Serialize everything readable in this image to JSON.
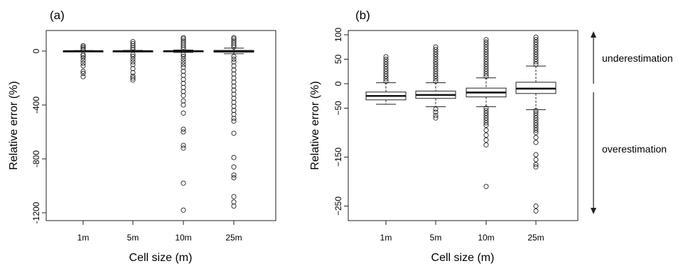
{
  "chart_data": [
    {
      "type": "box",
      "panel_label": "(a)",
      "xlabel": "Cell size (m)",
      "ylabel": "Relative error (%)",
      "categories": [
        "1m",
        "5m",
        "10m",
        "25m"
      ],
      "ylim": [
        -1250,
        150
      ],
      "yticks": [
        0,
        -400,
        -800,
        -1200
      ],
      "boxes": [
        {
          "category": "1m",
          "whisker_low": -5,
          "q1": -3,
          "median": -1,
          "q3": 1,
          "whisker_high": 4,
          "outliers": [
            -190,
            -165,
            -150,
            -110,
            -90,
            -70,
            -50,
            -35,
            -25,
            10,
            20,
            30,
            40
          ]
        },
        {
          "category": "5m",
          "whisker_low": -6,
          "q1": -3,
          "median": -1,
          "q3": 1,
          "whisker_high": 5,
          "outliers": [
            -215,
            -200,
            -185,
            -160,
            -130,
            -100,
            -80,
            -60,
            -40,
            -25,
            10,
            25,
            40,
            55,
            70
          ]
        },
        {
          "category": "10m",
          "whisker_low": -10,
          "q1": -4,
          "median": -1,
          "q3": 2,
          "whisker_high": 8,
          "outliers": [
            -1180,
            -980,
            -720,
            -700,
            -600,
            -580,
            -460,
            -400,
            -370,
            -330,
            -300,
            -270,
            -240,
            -210,
            -180,
            -150,
            -120,
            -100,
            -80,
            -60,
            -40,
            -25,
            15,
            30,
            45,
            60,
            75,
            90,
            100
          ]
        },
        {
          "category": "25m",
          "whisker_low": -20,
          "q1": -8,
          "median": -2,
          "q3": 5,
          "whisker_high": 22,
          "outliers": [
            -1150,
            -1120,
            -1080,
            -940,
            -920,
            -860,
            -790,
            -610,
            -520,
            -500,
            -470,
            -440,
            -410,
            -380,
            -350,
            -320,
            -290,
            -260,
            -230,
            -200,
            -170,
            -140,
            -110,
            -80,
            -60,
            -40,
            30,
            45,
            60,
            75,
            90,
            100
          ]
        }
      ]
    },
    {
      "type": "box",
      "panel_label": "(b)",
      "xlabel": "Cell size (m)",
      "ylabel": "Relative error (%)",
      "categories": [
        "1m",
        "5m",
        "10m",
        "25m"
      ],
      "ylim": [
        -275,
        105
      ],
      "yticks": [
        100,
        50,
        0,
        -50,
        -150,
        -250
      ],
      "ytick_labels": [
        "100",
        "50",
        "0",
        "−50",
        "−150",
        "−250"
      ],
      "boxes": [
        {
          "category": "1m",
          "whisker_low": -42,
          "q1": -33,
          "median": -25,
          "q3": -17,
          "whisker_high": 2,
          "outliers": [
            5,
            10,
            15,
            20,
            25,
            30,
            35,
            40,
            45,
            50,
            55
          ]
        },
        {
          "category": "5m",
          "whisker_low": -47,
          "q1": -30,
          "median": -23,
          "q3": -15,
          "whisker_high": 2,
          "outliers": [
            -70,
            -65,
            -58,
            -52,
            5,
            10,
            15,
            20,
            25,
            30,
            35,
            40,
            45,
            50,
            55,
            60,
            65,
            70,
            75
          ]
        },
        {
          "category": "10m",
          "whisker_low": -47,
          "q1": -27,
          "median": -18,
          "q3": -9,
          "whisker_high": 12,
          "outliers": [
            -210,
            -125,
            -115,
            -105,
            -95,
            -85,
            -80,
            -75,
            -70,
            -65,
            -60,
            -55,
            -50,
            15,
            20,
            25,
            30,
            35,
            40,
            45,
            50,
            55,
            60,
            65,
            70,
            75,
            80,
            85,
            90
          ]
        },
        {
          "category": "25m",
          "whisker_low": -53,
          "q1": -20,
          "median": -10,
          "q3": 3,
          "whisker_high": 36,
          "outliers": [
            -260,
            -250,
            -170,
            -165,
            -155,
            -145,
            -120,
            -110,
            -100,
            -95,
            -90,
            -85,
            -80,
            -75,
            -70,
            -65,
            -60,
            -55,
            40,
            45,
            50,
            55,
            60,
            65,
            70,
            75,
            80,
            85,
            90,
            95
          ]
        }
      ],
      "annotations": {
        "upper": "underestimation",
        "lower": "overestimation"
      }
    }
  ]
}
